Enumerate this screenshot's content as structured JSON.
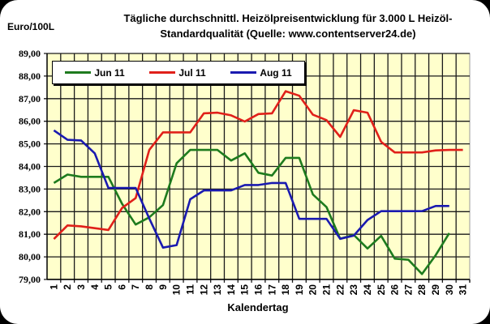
{
  "chart_data": {
    "type": "line",
    "title": "Tägliche durchschnittl. Heizölpreisentwicklung für 3.000 L Heizöl-Standardqualität (Quelle: www.contentserver24.de)",
    "title_lines": [
      "Tägliche durchschnittl. Heizölpreisentwicklung für 3.000 L Heizöl-",
      "Standardqualität (Quelle: www.contentserver24.de)"
    ],
    "xlabel": "Kalendertag",
    "ylabel": "Euro/100L",
    "ylim": [
      79,
      89
    ],
    "yticks": [
      "79,00",
      "80,00",
      "81,00",
      "82,00",
      "83,00",
      "84,00",
      "85,00",
      "86,00",
      "87,00",
      "88,00",
      "89,00"
    ],
    "categories": [
      "1",
      "2",
      "3",
      "4",
      "5",
      "6",
      "7",
      "8",
      "9",
      "10",
      "11",
      "12",
      "13",
      "14",
      "15",
      "16",
      "17",
      "18",
      "19",
      "20",
      "21",
      "22",
      "23",
      "24",
      "25",
      "26",
      "27",
      "28",
      "29",
      "30",
      "31"
    ],
    "grid": true,
    "legend_position": "top-left inside",
    "plot_background": "#FFFFCC",
    "series": [
      {
        "name": "Jun 11",
        "color": "#1E7B1E",
        "values": [
          83.27,
          83.64,
          83.54,
          83.54,
          83.54,
          82.35,
          81.43,
          81.75,
          82.29,
          84.14,
          84.73,
          84.73,
          84.73,
          84.26,
          84.58,
          83.72,
          83.6,
          84.38,
          84.38,
          82.76,
          82.2,
          80.8,
          80.97,
          80.37,
          80.93,
          79.92,
          79.87,
          79.24,
          80.07,
          81.05
        ]
      },
      {
        "name": "Jul 11",
        "color": "#E0201A",
        "values": [
          80.79,
          81.39,
          81.35,
          81.27,
          81.19,
          82.16,
          82.6,
          84.73,
          85.51,
          85.51,
          85.51,
          86.35,
          86.38,
          86.26,
          85.99,
          86.32,
          86.35,
          87.33,
          87.13,
          86.29,
          86.05,
          85.31,
          86.49,
          86.38,
          85.09,
          84.62,
          84.62,
          84.62,
          84.71,
          84.73,
          84.73
        ]
      },
      {
        "name": "Aug 11",
        "color": "#1A1AB0",
        "values": [
          85.6,
          85.18,
          85.15,
          84.58,
          83.05,
          83.05,
          83.05,
          81.7,
          80.41,
          80.52,
          82.55,
          82.94,
          82.94,
          82.94,
          83.18,
          83.18,
          83.27,
          83.27,
          81.68,
          81.68,
          81.68,
          80.8,
          80.94,
          81.63,
          82.02,
          82.02,
          82.02,
          82.02,
          82.25,
          82.25
        ]
      }
    ]
  }
}
